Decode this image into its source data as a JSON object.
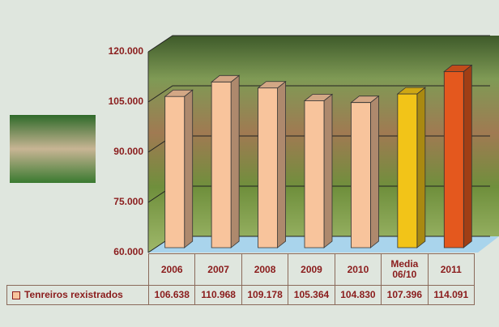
{
  "chart_data": {
    "type": "bar",
    "categories": [
      "2006",
      "2007",
      "2008",
      "2009",
      "2010",
      "Media 06/10",
      "2011"
    ],
    "series": [
      {
        "name": "Tenreiros rexistrados",
        "values": [
          106638,
          110968,
          109178,
          105364,
          104830,
          107396,
          114091
        ],
        "value_labels": [
          "106.638",
          "110.968",
          "109.178",
          "105.364",
          "104.830",
          "107.396",
          "114.091"
        ],
        "colors": [
          "#f8c49c",
          "#f8c49c",
          "#f8c49c",
          "#f8c49c",
          "#f8c49c",
          "#f2c418",
          "#e4581e"
        ]
      }
    ],
    "ylim": [
      60000,
      120000
    ],
    "yticks": [
      {
        "value": 60000,
        "label": "60.000"
      },
      {
        "value": 75000,
        "label": "75.000"
      },
      {
        "value": 90000,
        "label": "90.000"
      },
      {
        "value": 105000,
        "label": "105.000"
      },
      {
        "value": 120000,
        "label": "120.000"
      }
    ],
    "grid": true
  }
}
